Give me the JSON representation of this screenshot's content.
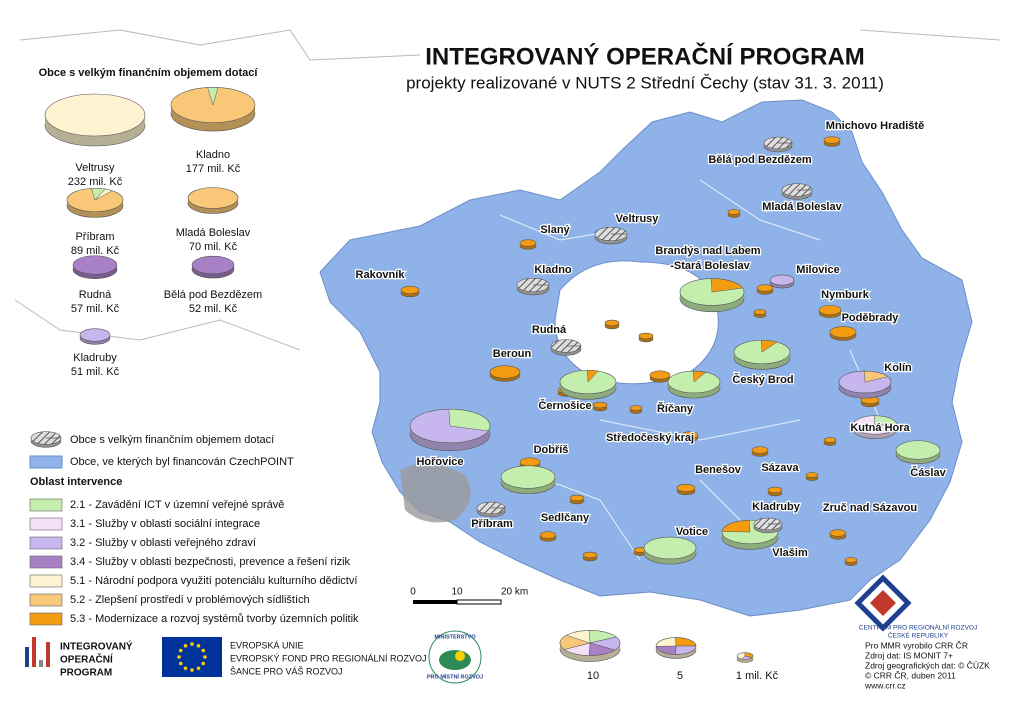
{
  "header": {
    "title": "INTEGROVANÝ OPERAČNÍ PROGRAM",
    "subtitle": "projekty realizované v NUTS 2 Střední Čechy (stav 31. 3. 2011)"
  },
  "large_municipalities": {
    "title": "Obce s velkým finančním objemem dotací",
    "items": [
      {
        "name": "Veltrusy",
        "amount": "232 mil. Kč"
      },
      {
        "name": "Kladno",
        "amount": "177 mil. Kč"
      },
      {
        "name": "Příbram",
        "amount": "89 mil. Kč"
      },
      {
        "name": "Mladá Boleslav",
        "amount": "70 mil. Kč"
      },
      {
        "name": "Rudná",
        "amount": "57 mil. Kč"
      },
      {
        "name": "Bělá pod Bezdězem",
        "amount": "52 mil. Kč"
      },
      {
        "name": "Kladruby",
        "amount": "51 mil. Kč"
      }
    ]
  },
  "map_labels": [
    "Mnichovo Hradiště",
    "Bělá pod Bezdězem",
    "Mladá Boleslav",
    "Veltrusy",
    "Slaný",
    "Brandýs nad Labem",
    "-Stará Boleslav",
    "Milovice",
    "Rakovník",
    "Kladno",
    "Nymburk",
    "Poděbrady",
    "Rudná",
    "Beroun",
    "Kolín",
    "Český Brod",
    "Černošice",
    "Říčany",
    "Středočeský kraj",
    "Kutná Hora",
    "Dobříš",
    "Hořovice",
    "Benešov",
    "Sázava",
    "Čáslav",
    "Kladruby",
    "Zruč nad Sázavou",
    "Příbram",
    "Sedlčany",
    "Votice",
    "Vlašim"
  ],
  "legend": {
    "symbols": [
      "Obce s velkým finančním objemem dotací",
      "Obce, ve kterých byl financován CzechPOINT"
    ],
    "heading": "Oblast intervence",
    "items": [
      {
        "label": "2.1 - Zavádění ICT v územní veřejné správě",
        "color": "#c4eeae"
      },
      {
        "label": "3.1 - Služby v oblasti sociální integrace",
        "color": "#f4e0f6"
      },
      {
        "label": "3.2 - Služby v oblasti veřejného zdraví",
        "color": "#c8b6ef"
      },
      {
        "label": "3.4 - Služby v oblasti bezpečnosti, prevence a řešení rizik",
        "color": "#a880c6"
      },
      {
        "label": "5.1 - Národní podpora využití potenciálu kulturního dědictví",
        "color": "#fdf3d0"
      },
      {
        "label": "5.2 - Zlepšení prostředí v problémových sídlištích",
        "color": "#f8c878"
      },
      {
        "label": "5.3 - Modernizace a rozvoj systémů tvorby územních politik",
        "color": "#f39c12"
      }
    ]
  },
  "scale": [
    "0",
    "10",
    "20 km"
  ],
  "size_legend": [
    "10",
    "5",
    "1 mil. Kč"
  ],
  "footer": {
    "iop_logo": [
      "INTEGROVANÝ",
      "OPERAČNÍ",
      "PROGRAM"
    ],
    "eu": [
      "EVROPSKÁ UNIE",
      "EVROPSKÝ FOND PRO REGIONÁLNÍ ROZVOJ",
      "ŠANCE PRO VÁŠ ROZVOJ"
    ],
    "ministry": [
      "MINISTERSTVO",
      "PRO MÍSTNÍ ROZVOJ"
    ],
    "crr": [
      "CENTRUM PRO REGIONÁLNÍ ROZVOJ",
      "ČESKÉ REPUBLIKY"
    ],
    "credits": [
      "Pro MMR vyrobilo CRR ČR",
      "Zdroj dat: IS MONIT 7+",
      "Zdroj geografických dat: © ČÚZK",
      "© CRR ČR, duben 2011",
      "www.crr.cz"
    ]
  }
}
